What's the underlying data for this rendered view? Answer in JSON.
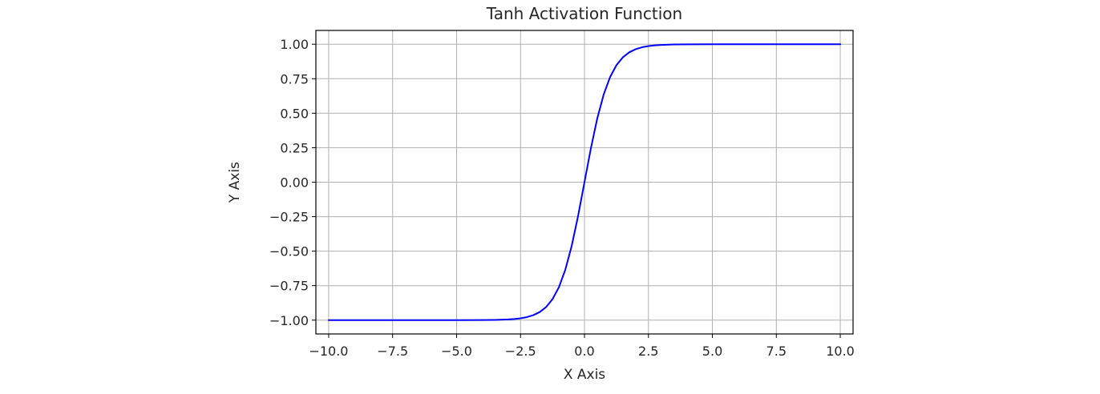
{
  "chart_data": {
    "type": "line",
    "title": "Tanh Activation Function",
    "xlabel": "X Axis",
    "ylabel": "Y Axis",
    "xlim": [
      -10.5,
      10.5
    ],
    "ylim": [
      -1.1,
      1.1
    ],
    "x_ticks": [
      -10.0,
      -7.5,
      -5.0,
      -2.5,
      0.0,
      2.5,
      5.0,
      7.5,
      10.0
    ],
    "x_tick_labels": [
      "−10.0",
      "−7.5",
      "−5.0",
      "−2.5",
      "0.0",
      "2.5",
      "5.0",
      "7.5",
      "10.0"
    ],
    "y_ticks": [
      -1.0,
      -0.75,
      -0.5,
      -0.25,
      0.0,
      0.25,
      0.5,
      0.75,
      1.0
    ],
    "y_tick_labels": [
      "−1.00",
      "−0.75",
      "−0.50",
      "−0.25",
      "0.00",
      "0.25",
      "0.50",
      "0.75",
      "1.00"
    ],
    "grid": true,
    "legend": null,
    "series": [
      {
        "color": "#0000ff",
        "x": [
          -10,
          -9,
          -8,
          -7,
          -6,
          -5,
          -4,
          -3.5,
          -3,
          -2.75,
          -2.5,
          -2.25,
          -2,
          -1.75,
          -1.5,
          -1.25,
          -1,
          -0.75,
          -0.5,
          -0.25,
          0,
          0.25,
          0.5,
          0.75,
          1,
          1.25,
          1.5,
          1.75,
          2,
          2.25,
          2.5,
          2.75,
          3,
          3.5,
          4,
          5,
          6,
          7,
          8,
          9,
          10
        ],
        "y": [
          -1.0,
          -1.0,
          -1.0,
          -1.0,
          -1.0,
          -0.9999,
          -0.9993,
          -0.9982,
          -0.9951,
          -0.9919,
          -0.9866,
          -0.978,
          -0.964,
          -0.9414,
          -0.9051,
          -0.8483,
          -0.7616,
          -0.6351,
          -0.4621,
          -0.2449,
          0.0,
          0.2449,
          0.4621,
          0.6351,
          0.7616,
          0.8483,
          0.9051,
          0.9414,
          0.964,
          0.978,
          0.9866,
          0.9919,
          0.9951,
          0.9982,
          0.9993,
          0.9999,
          1.0,
          1.0,
          1.0,
          1.0,
          1.0
        ]
      }
    ]
  }
}
